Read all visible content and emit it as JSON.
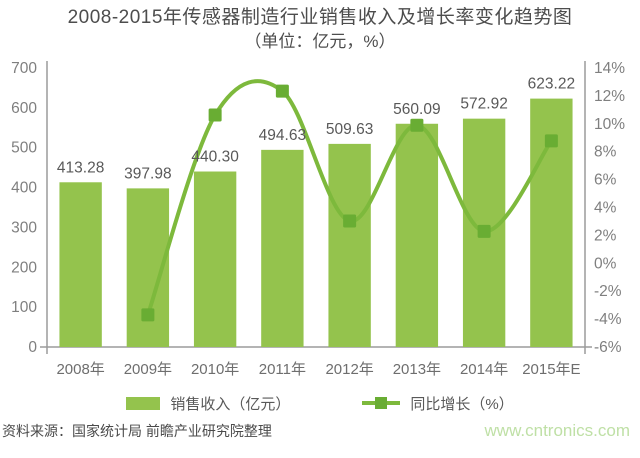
{
  "chart_data": {
    "type": "bar+line",
    "title": "2008-2015年传感器制造行业销售收入及增长率变化趋势图",
    "subtitle": "（单位：亿元，%）",
    "categories": [
      "2008年",
      "2009年",
      "2010年",
      "2011年",
      "2012年",
      "2013年",
      "2014年",
      "2015年E"
    ],
    "series": [
      {
        "name": "销售收入（亿元）",
        "type": "bar",
        "axis": "left",
        "color": "#94C34D",
        "values": [
          413.28,
          397.98,
          440.3,
          494.63,
          509.63,
          560.09,
          572.92,
          623.22
        ],
        "labels": [
          "413.28",
          "397.98",
          "440.30",
          "494.63",
          "509.63",
          "560.09",
          "572.92",
          "623.22"
        ]
      },
      {
        "name": "同比增长（%）",
        "type": "line",
        "axis": "right",
        "color": "#7DB93C",
        "marker_color": "#69AD33",
        "values": [
          null,
          -3.7,
          10.63,
          12.34,
          3.03,
          9.9,
          2.29,
          8.78
        ]
      }
    ],
    "y_axis_left": {
      "min": 0,
      "max": 700,
      "step": 100,
      "tick_values": [
        700,
        600,
        500,
        400,
        300,
        200,
        100,
        0
      ],
      "tick_labels": [
        "700",
        "600",
        "500",
        "400",
        "300",
        "200",
        "100",
        "0"
      ]
    },
    "y_axis_right": {
      "min": -6,
      "max": 14,
      "step": 2,
      "tick_values": [
        14,
        12,
        10,
        8,
        6,
        4,
        2,
        0,
        -2,
        -4,
        -6
      ],
      "tick_labels": [
        "14%",
        "12%",
        "10%",
        "8%",
        "6%",
        "4%",
        "2%",
        "0%",
        "-2%",
        "-4%",
        "-6%"
      ]
    },
    "grid": false,
    "legend_position": "bottom",
    "colors": {
      "axis": "#9B9B9B",
      "tick_text": "#7F7F7F",
      "value_label": "#595959",
      "title_text": "#4D4D4D"
    }
  },
  "footer": {
    "source": "资料来源：国家统计局 前瞻产业研究院整理",
    "site": "www.cntronics.com",
    "site_color": "#BFE0A6"
  }
}
